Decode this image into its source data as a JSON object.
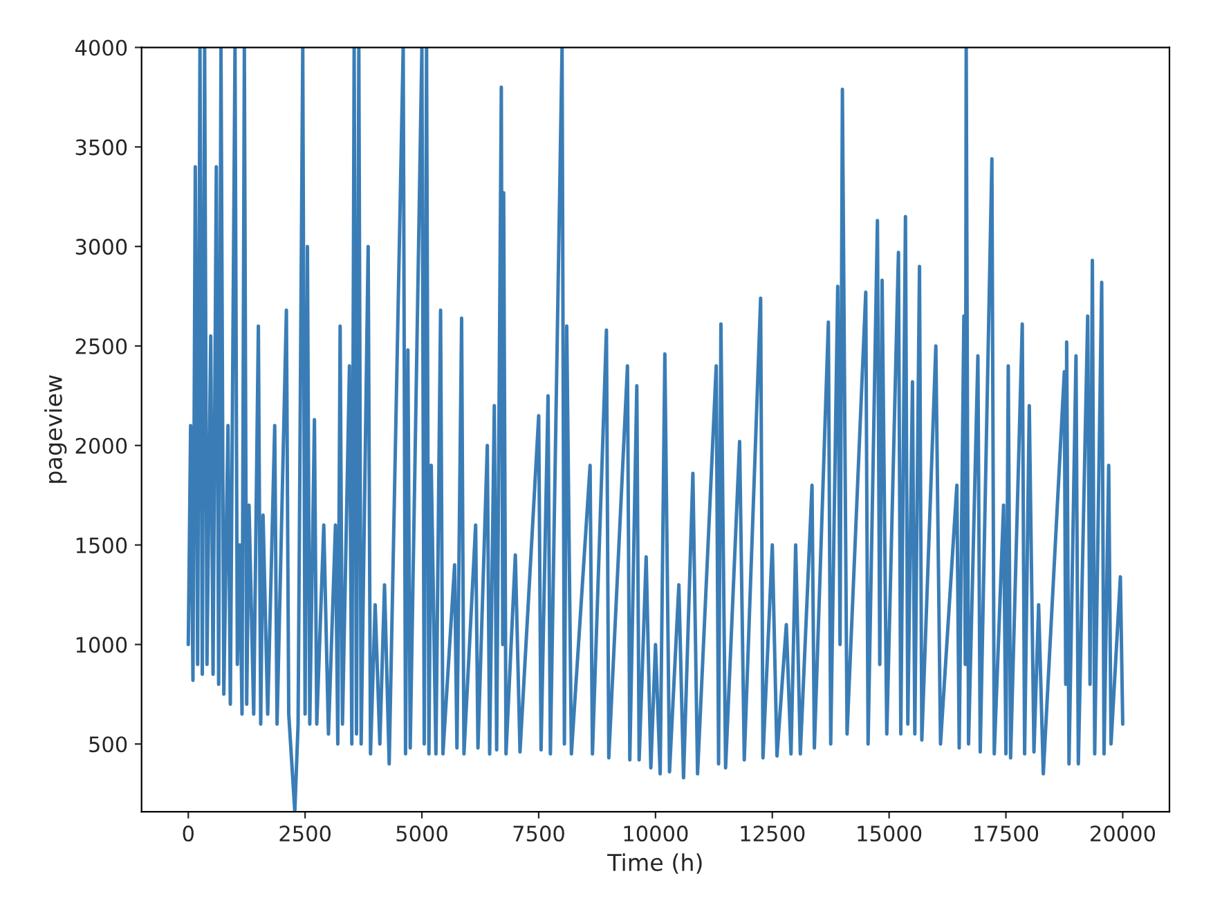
{
  "chart_data": {
    "type": "line",
    "xlabel": "Time (h)",
    "ylabel": "pageview",
    "x": [
      0,
      50,
      100,
      150,
      200,
      250,
      300,
      350,
      400,
      480,
      530,
      600,
      650,
      700,
      760,
      850,
      900,
      1000,
      1050,
      1100,
      1150,
      1200,
      1250,
      1300,
      1400,
      1500,
      1550,
      1600,
      1700,
      1850,
      1900,
      2100,
      2150,
      2280,
      2350,
      2450,
      2500,
      2550,
      2600,
      2700,
      2750,
      2900,
      3000,
      3150,
      3200,
      3250,
      3300,
      3450,
      3500,
      3550,
      3600,
      3650,
      3700,
      3850,
      3900,
      4000,
      4100,
      4200,
      4300,
      4600,
      4650,
      4700,
      4750,
      5000,
      5050,
      5100,
      5150,
      5200,
      5300,
      5400,
      5450,
      5700,
      5750,
      5850,
      5900,
      6150,
      6200,
      6400,
      6450,
      6550,
      6600,
      6700,
      6730,
      6750,
      6800,
      7000,
      7100,
      7500,
      7550,
      7700,
      7750,
      8000,
      8050,
      8100,
      8200,
      8600,
      8650,
      8950,
      9000,
      9400,
      9450,
      9600,
      9650,
      9800,
      9900,
      10000,
      10100,
      10200,
      10300,
      10500,
      10600,
      10800,
      10900,
      11300,
      11350,
      11400,
      11500,
      11800,
      11900,
      12250,
      12300,
      12500,
      12600,
      12800,
      12900,
      13000,
      13100,
      13350,
      13400,
      13700,
      13750,
      13900,
      13950,
      14000,
      14100,
      14500,
      14550,
      14750,
      14800,
      14850,
      14950,
      15200,
      15250,
      15350,
      15400,
      15500,
      15550,
      15650,
      15700,
      16000,
      16100,
      16450,
      16500,
      16600,
      16630,
      16650,
      16700,
      16900,
      16950,
      17200,
      17250,
      17450,
      17500,
      17550,
      17600,
      17850,
      17900,
      18000,
      18100,
      18200,
      18300,
      18750,
      18780,
      18800,
      18850,
      19000,
      19050,
      19250,
      19300,
      19350,
      19400,
      19550,
      19600,
      19700,
      19750,
      19950,
      20000
    ],
    "values": [
      1000,
      2100,
      820,
      3400,
      900,
      4000,
      850,
      4000,
      900,
      2550,
      850,
      3400,
      800,
      4000,
      750,
      2100,
      700,
      4000,
      900,
      1500,
      650,
      4000,
      700,
      1700,
      650,
      2600,
      600,
      1650,
      650,
      2100,
      600,
      2680,
      650,
      160,
      600,
      4000,
      650,
      3000,
      600,
      2130,
      600,
      1600,
      550,
      1600,
      500,
      2600,
      600,
      2400,
      500,
      4000,
      550,
      4000,
      500,
      3000,
      450,
      1200,
      500,
      1300,
      400,
      4000,
      450,
      2480,
      480,
      4000,
      500,
      4000,
      450,
      1900,
      450,
      2680,
      450,
      1400,
      480,
      2640,
      450,
      1600,
      480,
      2000,
      450,
      2200,
      470,
      3800,
      1000,
      3270,
      450,
      1450,
      460,
      2150,
      470,
      2250,
      450,
      4000,
      500,
      2600,
      450,
      1900,
      450,
      2580,
      430,
      2400,
      420,
      2300,
      420,
      1440,
      380,
      1000,
      350,
      2460,
      360,
      1300,
      330,
      1860,
      350,
      2400,
      400,
      2610,
      380,
      2020,
      420,
      2740,
      430,
      1500,
      440,
      1100,
      450,
      1500,
      450,
      1800,
      480,
      2620,
      500,
      2800,
      1000,
      3790,
      550,
      2770,
      500,
      3130,
      900,
      2830,
      550,
      2970,
      550,
      3150,
      600,
      2320,
      550,
      2900,
      520,
      2500,
      500,
      1800,
      480,
      2650,
      900,
      4000,
      500,
      2450,
      460,
      3440,
      450,
      1700,
      450,
      2400,
      430,
      2610,
      450,
      2200,
      460,
      1200,
      350,
      2370,
      800,
      2520,
      400,
      2450,
      400,
      2650,
      800,
      2930,
      450,
      2820,
      450,
      1900,
      500,
      1340,
      600
    ],
    "color": "#3a7db6",
    "xlim": [
      -1000,
      21000
    ],
    "xticks": [
      0,
      2500,
      5000,
      7500,
      10000,
      12500,
      15000,
      17500,
      20000
    ],
    "ylim": [
      160,
      4000
    ],
    "yticks": [
      500,
      1000,
      1500,
      2000,
      2500,
      3000,
      3500,
      4000
    ],
    "grid": false,
    "legend": false
  }
}
